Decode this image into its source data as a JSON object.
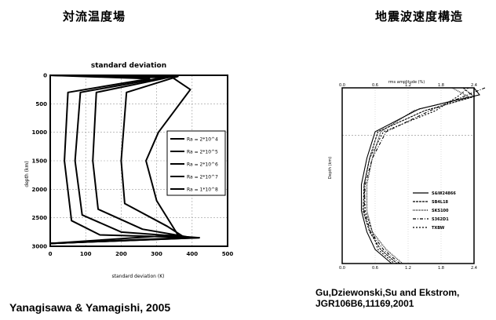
{
  "left_panel": {
    "title": "対流温度場",
    "credit": "Yanagisawa & Yamagishi, 2005"
  },
  "right_panel": {
    "title": "地震波速度構造",
    "credit_line1": "Gu,Dziewonski,Su and Ekstrom,",
    "credit_line2": "JGR106B6,11169,2001"
  },
  "chart_data": [
    {
      "type": "line",
      "title": "standard deviation",
      "xlabel": "standard deviation (K)",
      "ylabel": "depth (km)",
      "x_ticks": [
        "0",
        "100",
        "200",
        "300",
        "400",
        "500"
      ],
      "y_ticks": [
        "0",
        "500",
        "1000",
        "1500",
        "2000",
        "2500",
        "3000"
      ],
      "xlim": [
        0,
        500
      ],
      "ylim": [
        3000,
        0
      ],
      "grid": true,
      "legend_position": "right",
      "series": [
        {
          "name": "Ra = 2*10^4",
          "x": [
            0,
            280,
            50,
            40,
            60,
            140,
            420,
            0
          ],
          "y": [
            0,
            60,
            300,
            1500,
            2550,
            2800,
            2850,
            2950
          ]
        },
        {
          "name": "Ra = 2*10^5",
          "x": [
            0,
            320,
            85,
            70,
            90,
            200,
            420,
            0
          ],
          "y": [
            0,
            40,
            300,
            1500,
            2450,
            2750,
            2850,
            2950
          ]
        },
        {
          "name": "Ra = 2*10^6",
          "x": [
            0,
            340,
            130,
            120,
            135,
            260,
            400,
            0
          ],
          "y": [
            0,
            30,
            300,
            1500,
            2350,
            2700,
            2850,
            2950
          ]
        },
        {
          "name": "Ra = 2*10^7",
          "x": [
            0,
            360,
            215,
            200,
            210,
            330,
            380,
            0
          ],
          "y": [
            0,
            20,
            300,
            1500,
            2250,
            2650,
            2850,
            2950
          ]
        },
        {
          "name": "Ra = 1*10^8",
          "x": [
            0,
            340,
            395,
            305,
            270,
            300,
            360,
            0
          ],
          "y": [
            0,
            20,
            250,
            1000,
            1500,
            2200,
            2800,
            2950
          ]
        }
      ]
    },
    {
      "type": "line",
      "title": "",
      "xlabel": "rms amplitude (%)",
      "ylabel": "Depth (km)",
      "x_ticks": [
        "0.0",
        "0.6",
        "1.2",
        "1.8",
        "2.4"
      ],
      "legend_position": "bottom-right",
      "series": [
        {
          "name": "S&W24866",
          "x": [
            2.4,
            2.5,
            1.4,
            0.6,
            0.45,
            0.35,
            0.35,
            0.45,
            0.6,
            0.9
          ],
          "y": [
            0,
            0.04,
            0.12,
            0.25,
            0.4,
            0.55,
            0.7,
            0.82,
            0.92,
            1.0
          ]
        },
        {
          "name": "SB4L18",
          "x": [
            2.2,
            2.4,
            1.5,
            0.65,
            0.5,
            0.4,
            0.38,
            0.5,
            0.7,
            1.0
          ],
          "y": [
            0,
            0.05,
            0.13,
            0.25,
            0.4,
            0.55,
            0.7,
            0.82,
            0.92,
            1.0
          ]
        },
        {
          "name": "SKS100",
          "x": [
            2.0,
            2.3,
            1.3,
            0.7,
            0.55,
            0.45,
            0.45,
            0.55,
            0.8,
            1.1
          ],
          "y": [
            0,
            0.05,
            0.13,
            0.25,
            0.4,
            0.55,
            0.7,
            0.82,
            0.92,
            1.0
          ]
        },
        {
          "name": "S362D1",
          "x": [
            2.6,
            2.2,
            1.6,
            0.8,
            0.55,
            0.42,
            0.4,
            0.52,
            0.75,
            1.05
          ],
          "y": [
            0,
            0.05,
            0.13,
            0.25,
            0.4,
            0.55,
            0.7,
            0.82,
            0.92,
            1.0
          ]
        },
        {
          "name": "TXBW",
          "x": [
            2.3,
            2.1,
            1.7,
            0.75,
            0.5,
            0.4,
            0.42,
            0.55,
            0.65,
            0.95
          ],
          "y": [
            0,
            0.05,
            0.13,
            0.25,
            0.4,
            0.55,
            0.7,
            0.82,
            0.92,
            1.0
          ]
        }
      ]
    }
  ]
}
